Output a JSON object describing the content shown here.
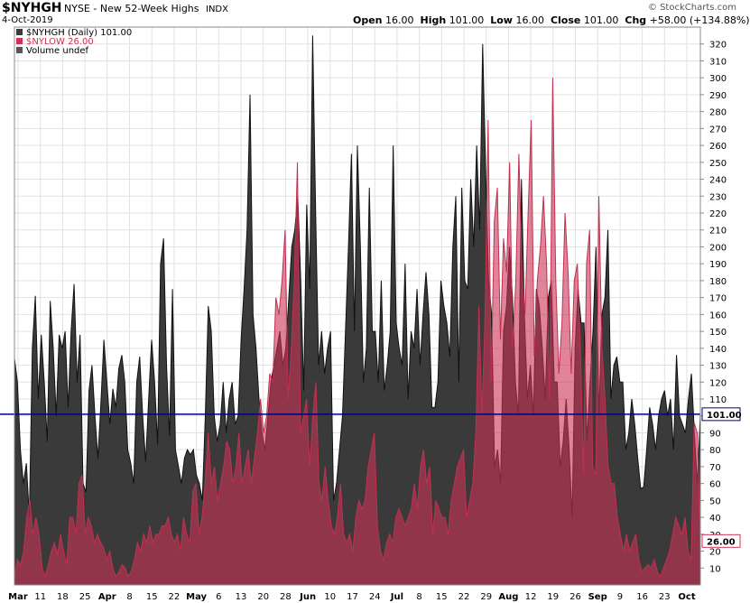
{
  "header": {
    "symbol": "$NYHGH",
    "exchange_desc": "NYSE - New 52-Week Highs",
    "type": "INDX",
    "date": "4-Oct-2019",
    "watermark": "© StockCharts.com",
    "open_label": "Open",
    "open": "16.00",
    "high_label": "High",
    "high": "101.00",
    "low_label": "Low",
    "low": "16.00",
    "close_label": "Close",
    "close": "101.00",
    "chg_label": "Chg",
    "chg": "+58.00 (+134.88%)"
  },
  "legend": [
    {
      "text": "$NYHGH (Daily) 101.00",
      "color": "#3a3a3a"
    },
    {
      "text": "$NYLOW 26.00",
      "color": "#cc3355"
    },
    {
      "text": "Volume undef",
      "color": "#555555"
    }
  ],
  "chart_data": {
    "type": "area",
    "ylim": [
      0,
      330
    ],
    "yticks": [
      10,
      20,
      30,
      40,
      50,
      60,
      70,
      80,
      90,
      100,
      110,
      120,
      130,
      140,
      150,
      160,
      170,
      180,
      190,
      200,
      210,
      220,
      230,
      240,
      250,
      260,
      270,
      280,
      290,
      300,
      310,
      320
    ],
    "x_ticks": [
      "Mar",
      "11",
      "18",
      "25",
      "Apr",
      "8",
      "15",
      "22",
      "May",
      "6",
      "13",
      "20",
      "28",
      "Jun",
      "10",
      "17",
      "24",
      "Jul",
      "8",
      "15",
      "22",
      "29",
      "Aug",
      "12",
      "19",
      "26",
      "Sep",
      "9",
      "16",
      "23",
      "Oct"
    ],
    "bold_ticks": [
      "Mar",
      "Apr",
      "May",
      "Jun",
      "Jul",
      "Aug",
      "Sep",
      "Oct"
    ],
    "reference_line": 101,
    "last_labels": {
      "high": "101.00",
      "low": "26.00"
    },
    "series": [
      {
        "name": "$NYHGH",
        "color": "#3a3a3a",
        "values": [
          134,
          120,
          80,
          60,
          72,
          40,
          140,
          171,
          110,
          148,
          120,
          85,
          168,
          140,
          100,
          148,
          140,
          150,
          105,
          150,
          178,
          120,
          148,
          60,
          55,
          115,
          130,
          100,
          75,
          108,
          145,
          120,
          95,
          116,
          105,
          128,
          136,
          120,
          80,
          72,
          60,
          120,
          135,
          100,
          73,
          110,
          145,
          120,
          83,
          190,
          205,
          130,
          88,
          175,
          80,
          70,
          60,
          75,
          80,
          77,
          80,
          65,
          60,
          50,
          100,
          165,
          150,
          100,
          85,
          95,
          120,
          90,
          110,
          120,
          95,
          100,
          145,
          175,
          210,
          290,
          160,
          140,
          110,
          90,
          80,
          100,
          120,
          130,
          140,
          150,
          130,
          140,
          170,
          200,
          210,
          230,
          180,
          115,
          225,
          175,
          325,
          220,
          130,
          150,
          125,
          140,
          150,
          50,
          60,
          80,
          100,
          150,
          200,
          255,
          150,
          260,
          200,
          120,
          140,
          235,
          150,
          150,
          120,
          180,
          115,
          130,
          150,
          260,
          155,
          140,
          130,
          190,
          110,
          150,
          140,
          175,
          130,
          160,
          185,
          160,
          105,
          105,
          120,
          180,
          165,
          155,
          135,
          200,
          230,
          120,
          235,
          180,
          175,
          240,
          200,
          260,
          210,
          320,
          245,
          180,
          160,
          70,
          80,
          60,
          150,
          165,
          200,
          170,
          120,
          100,
          240,
          160,
          110,
          130,
          100,
          175,
          165,
          140,
          110,
          170,
          180,
          120,
          120,
          70,
          85,
          110,
          80,
          40,
          140,
          175,
          155,
          155,
          85,
          120,
          150,
          200,
          100,
          160,
          170,
          210,
          110,
          130,
          135,
          120,
          120,
          80,
          90,
          110,
          95,
          75,
          57,
          58,
          80,
          105,
          95,
          80,
          100,
          110,
          115,
          100,
          110,
          80,
          136,
          100,
          95,
          90,
          110,
          125,
          90,
          60,
          101
        ]
      },
      {
        "name": "$NYLOW",
        "color": "#cc3355",
        "values": [
          5,
          15,
          12,
          20,
          40,
          50,
          30,
          40,
          30,
          10,
          5,
          12,
          20,
          25,
          18,
          30,
          20,
          12,
          40,
          40,
          30,
          60,
          65,
          30,
          40,
          35,
          25,
          30,
          25,
          22,
          15,
          20,
          10,
          5,
          8,
          12,
          10,
          5,
          8,
          15,
          25,
          20,
          30,
          25,
          35,
          25,
          30,
          30,
          35,
          35,
          40,
          30,
          25,
          30,
          20,
          40,
          30,
          25,
          55,
          60,
          30,
          40,
          60,
          90,
          60,
          70,
          50,
          60,
          70,
          85,
          80,
          60,
          70,
          90,
          60,
          70,
          80,
          60,
          75,
          90,
          110,
          90,
          100,
          125,
          120,
          170,
          160,
          180,
          210,
          110,
          140,
          180,
          250,
          90,
          100,
          110,
          70,
          100,
          120,
          60,
          50,
          70,
          50,
          35,
          30,
          40,
          60,
          30,
          25,
          30,
          20,
          40,
          50,
          45,
          50,
          70,
          80,
          90,
          35,
          20,
          15,
          25,
          30,
          25,
          40,
          45,
          40,
          35,
          40,
          45,
          60,
          45,
          70,
          80,
          60,
          70,
          30,
          50,
          45,
          40,
          40,
          30,
          50,
          60,
          70,
          75,
          80,
          40,
          50,
          60,
          90,
          165,
          100,
          160,
          275,
          120,
          215,
          235,
          145,
          205,
          185,
          250,
          140,
          180,
          255,
          185,
          160,
          220,
          275,
          135,
          180,
          200,
          230,
          190,
          110,
          300,
          180,
          125,
          155,
          220,
          185,
          125,
          180,
          190,
          140,
          65,
          190,
          210,
          70,
          65,
          230,
          140,
          110,
          70,
          60,
          60,
          40,
          30,
          20,
          30,
          20,
          25,
          30,
          15,
          8,
          10,
          12,
          10,
          15,
          8,
          5,
          10,
          15,
          20,
          30,
          40,
          35,
          30,
          40,
          20,
          15,
          96,
          90,
          26
        ]
      }
    ]
  }
}
